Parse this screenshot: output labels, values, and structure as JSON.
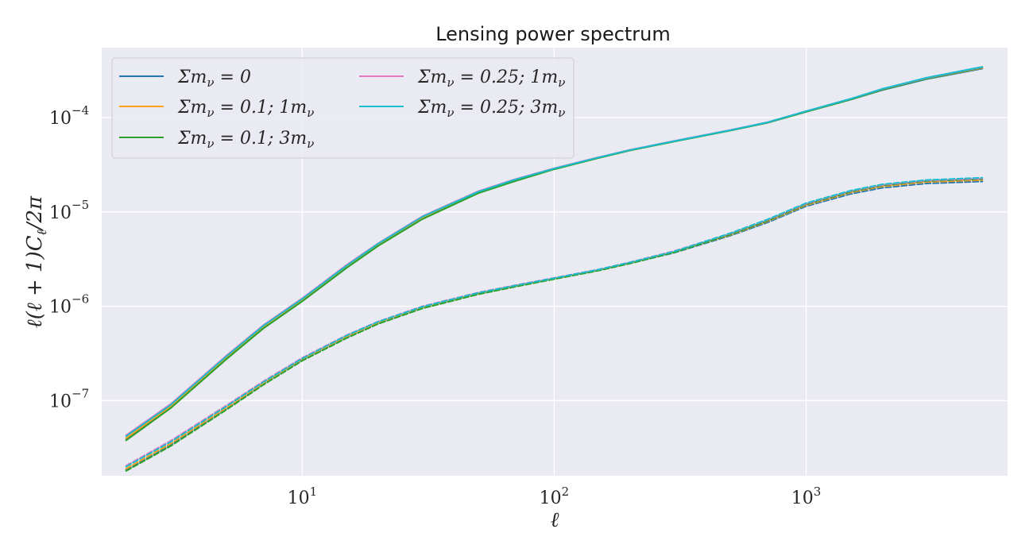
{
  "chart_data": {
    "type": "line",
    "title": "Lensing power spectrum",
    "xlabel": "ℓ",
    "ylabel": "ℓ(ℓ + 1)C",
    "ylabel_sub": "ℓ",
    "ylabel_tail": "/2π",
    "xscale": "log",
    "yscale": "log",
    "xlim": [
      1.6,
      6300
    ],
    "ylim": [
      1.6e-08,
      0.00055
    ],
    "grid": true,
    "legend_position": "top-left",
    "legend_columns": 2,
    "x_ticks": [
      {
        "value": 10,
        "base": "10",
        "exp": "1"
      },
      {
        "value": 100,
        "base": "10",
        "exp": "2"
      },
      {
        "value": 1000,
        "base": "10",
        "exp": "3"
      }
    ],
    "y_ticks": [
      {
        "value": 1e-07,
        "base": "10",
        "exp": "−7"
      },
      {
        "value": 1e-06,
        "base": "10",
        "exp": "−6"
      },
      {
        "value": 1e-05,
        "base": "10",
        "exp": "−5"
      },
      {
        "value": 0.0001,
        "base": "10",
        "exp": "−4"
      }
    ],
    "x": [
      2,
      3,
      5,
      7,
      10,
      15,
      20,
      30,
      50,
      70,
      100,
      150,
      200,
      300,
      500,
      700,
      1000,
      1500,
      2000,
      3000,
      5000
    ],
    "series": [
      {
        "name": "Σm",
        "name_sub": "ν",
        "name_tail": " = 0",
        "color": "#1f77b4",
        "style": "solid",
        "values": [
          3.9e-08,
          8.5e-08,
          2.8e-07,
          5.9e-07,
          1.15e-06,
          2.6e-06,
          4.4e-06,
          8.6e-06,
          1.6e-05,
          2.15e-05,
          2.85e-05,
          3.75e-05,
          4.5e-05,
          5.6e-05,
          7.3e-05,
          8.8e-05,
          0.000115,
          0.000155,
          0.000195,
          0.000255,
          0.00033
        ]
      },
      {
        "name": "Σm",
        "name_sub": "ν",
        "name_tail": " = 0.1; 1m",
        "name_sub2": "ν",
        "color": "#ff9f1c",
        "style": "solid",
        "values": [
          4e-08,
          8.7e-08,
          2.85e-07,
          6e-07,
          1.17e-06,
          2.65e-06,
          4.5e-06,
          8.7e-06,
          1.62e-05,
          2.18e-05,
          2.87e-05,
          3.77e-05,
          4.52e-05,
          5.62e-05,
          7.32e-05,
          8.82e-05,
          0.000116,
          0.000156,
          0.000197,
          0.000258,
          0.000335
        ]
      },
      {
        "name": "Σm",
        "name_sub": "ν",
        "name_tail": " = 0.1; 3m",
        "name_sub2": "ν",
        "color": "#2ca02c",
        "style": "solid",
        "values": [
          3.8e-08,
          8.3e-08,
          2.75e-07,
          5.8e-07,
          1.13e-06,
          2.55e-06,
          4.35e-06,
          8.4e-06,
          1.58e-05,
          2.12e-05,
          2.83e-05,
          3.73e-05,
          4.48e-05,
          5.58e-05,
          7.28e-05,
          8.78e-05,
          0.000115,
          0.000155,
          0.000196,
          0.000258,
          0.000338
        ]
      },
      {
        "name": "Σm",
        "name_sub": "ν",
        "name_tail": " = 0.25; 1m",
        "name_sub2": "ν",
        "color": "#e377c2",
        "style": "solid",
        "values": [
          4.3e-08,
          9.2e-08,
          3e-07,
          6.3e-07,
          1.22e-06,
          2.75e-06,
          4.65e-06,
          9e-06,
          1.66e-05,
          2.22e-05,
          2.9e-05,
          3.8e-05,
          4.55e-05,
          5.65e-05,
          7.38e-05,
          8.9e-05,
          0.000117,
          0.000158,
          0.0002,
          0.000262,
          0.000342
        ]
      },
      {
        "name": "Σm",
        "name_sub": "ν",
        "name_tail": " = 0.25; 3m",
        "name_sub2": "ν",
        "color": "#17becf",
        "style": "solid",
        "values": [
          4.2e-08,
          9e-08,
          2.95e-07,
          6.2e-07,
          1.2e-06,
          2.7e-06,
          4.6e-06,
          8.9e-06,
          1.64e-05,
          2.2e-05,
          2.88e-05,
          3.78e-05,
          4.53e-05,
          5.63e-05,
          7.35e-05,
          8.88e-05,
          0.000117,
          0.000158,
          0.000201,
          0.000264,
          0.000345
        ]
      },
      {
        "color": "#1f77b4",
        "style": "dashed",
        "values": [
          1.85e-08,
          3.4e-08,
          8.2e-08,
          1.5e-07,
          2.7e-07,
          4.7e-07,
          6.6e-07,
          9.6e-07,
          1.35e-06,
          1.62e-06,
          1.95e-06,
          2.4e-06,
          2.85e-06,
          3.7e-06,
          5.6e-06,
          7.7e-06,
          1.15e-05,
          1.55e-05,
          1.8e-05,
          2e-05,
          2.1e-05
        ]
      },
      {
        "color": "#ff9f1c",
        "style": "dashed",
        "values": [
          1.9e-08,
          3.5e-08,
          8.4e-08,
          1.53e-07,
          2.75e-07,
          4.8e-07,
          6.7e-07,
          9.7e-07,
          1.37e-06,
          1.64e-06,
          1.97e-06,
          2.42e-06,
          2.88e-06,
          3.75e-06,
          5.7e-06,
          7.9e-06,
          1.18e-05,
          1.6e-05,
          1.86e-05,
          2.07e-05,
          2.17e-05
        ]
      },
      {
        "color": "#2ca02c",
        "style": "dashed",
        "values": [
          1.8e-08,
          3.3e-08,
          8e-08,
          1.47e-07,
          2.65e-07,
          4.6e-07,
          6.5e-07,
          9.5e-07,
          1.34e-06,
          1.61e-06,
          1.94e-06,
          2.39e-06,
          2.84e-06,
          3.72e-06,
          5.75e-06,
          8e-06,
          1.2e-05,
          1.63e-05,
          1.9e-05,
          2.12e-05,
          2.22e-05
        ]
      },
      {
        "color": "#e377c2",
        "style": "dashed",
        "values": [
          2.05e-08,
          3.75e-08,
          8.9e-08,
          1.6e-07,
          2.85e-07,
          4.95e-07,
          6.9e-07,
          1e-06,
          1.4e-06,
          1.67e-06,
          2e-06,
          2.46e-06,
          2.93e-06,
          3.85e-06,
          5.9e-06,
          8.2e-06,
          1.22e-05,
          1.66e-05,
          1.93e-05,
          2.15e-05,
          2.25e-05
        ]
      },
      {
        "color": "#17becf",
        "style": "dashed",
        "values": [
          2e-08,
          3.65e-08,
          8.7e-08,
          1.57e-07,
          2.8e-07,
          4.9e-07,
          6.85e-07,
          9.9e-07,
          1.39e-06,
          1.66e-06,
          1.99e-06,
          2.45e-06,
          2.92e-06,
          3.82e-06,
          5.95e-06,
          8.3e-06,
          1.24e-05,
          1.68e-05,
          1.96e-05,
          2.18e-05,
          2.3e-05
        ]
      }
    ]
  }
}
